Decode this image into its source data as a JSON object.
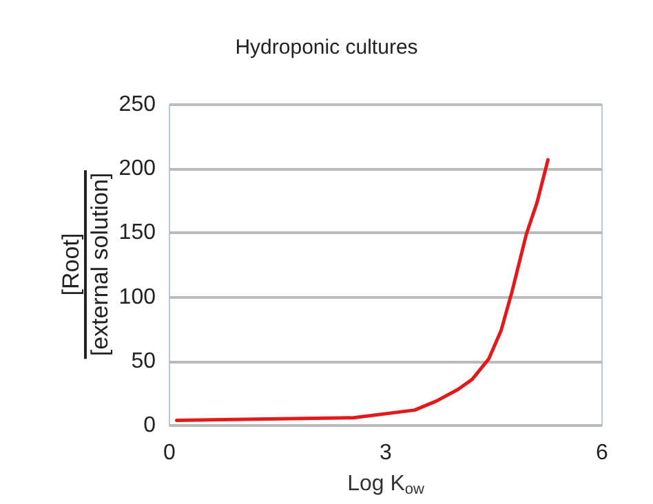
{
  "chart_data": {
    "type": "line",
    "title": "Hydroponic cultures",
    "xlabel": "Log K$_{ow}$",
    "ylabel": "[Root]\n[external solution]",
    "x": [
      0.1,
      1.2,
      2.55,
      3.4,
      3.7,
      4.0,
      4.2,
      4.43,
      4.6,
      4.75,
      4.95,
      5.1,
      5.25
    ],
    "series": [
      {
        "color": "#e31a1c",
        "values": [
          4,
          5,
          6,
          12,
          19,
          28,
          36,
          52,
          74,
          104,
          149,
          174,
          207
        ]
      }
    ],
    "xlim": [
      0,
      6
    ],
    "xticks": [
      0,
      3,
      6
    ],
    "ylim": [
      0,
      250
    ],
    "yticks": [
      0,
      50,
      100,
      150,
      200,
      250
    ],
    "grid": "y",
    "marker": "none",
    "line_style": "solid"
  }
}
